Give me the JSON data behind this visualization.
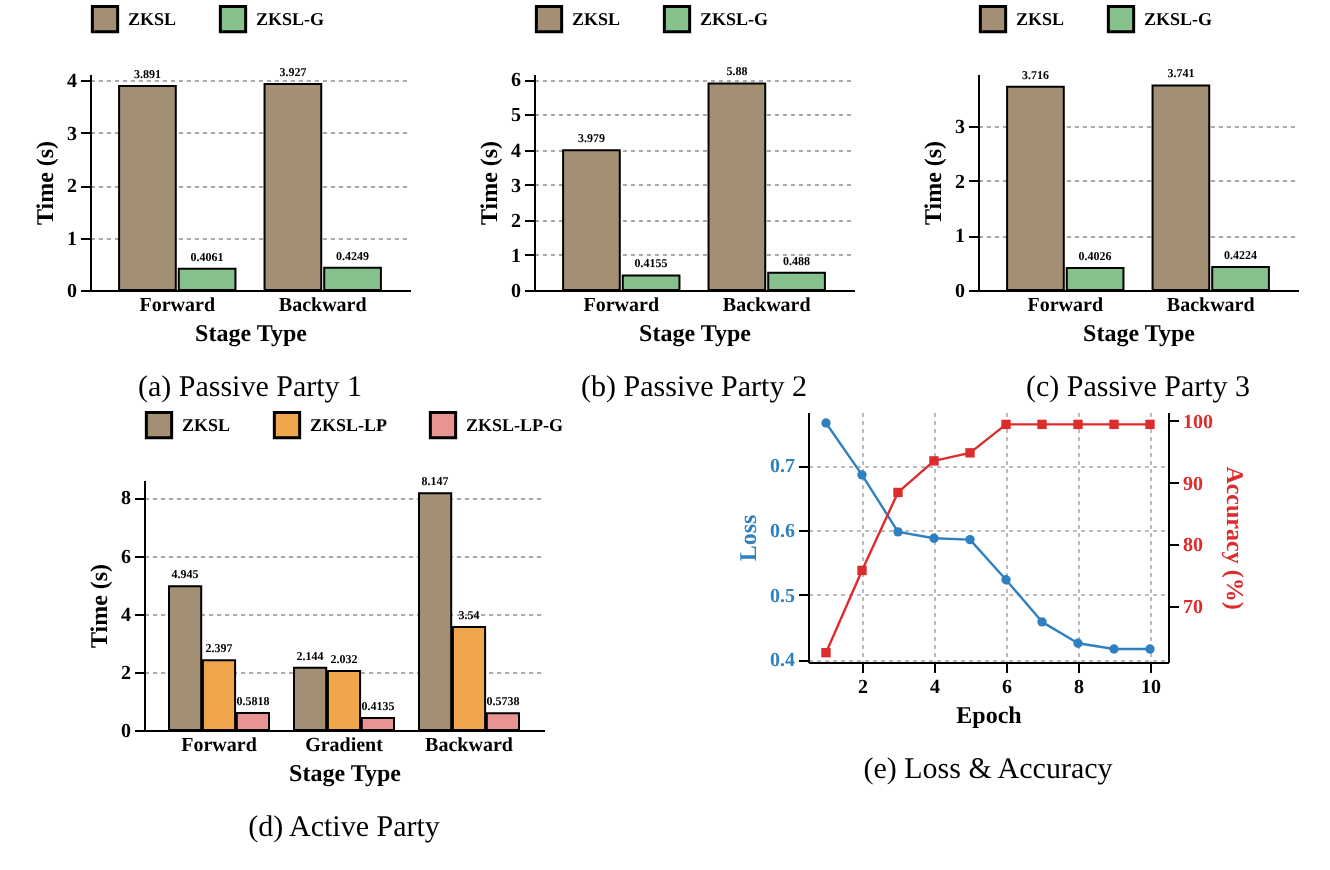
{
  "chart_data": [
    {
      "type": "bar",
      "title": "(a) Passive Party 1",
      "xlabel": "Stage Type",
      "ylabel": "Time (s)",
      "categories": [
        "Forward",
        "Backward"
      ],
      "ylim": [
        0,
        4.12
      ],
      "yticks": [
        0,
        1,
        2,
        3,
        4
      ],
      "grid": "y",
      "legend": "top",
      "data_labels": true,
      "series": [
        {
          "name": "ZKSL",
          "color": "#a38f73",
          "values": [
            3.891,
            3.927
          ]
        },
        {
          "name": "ZKSL-G",
          "color": "#86c08a",
          "values": [
            0.4061,
            0.4249
          ]
        }
      ]
    },
    {
      "type": "bar",
      "title": "(b) Passive Party 2",
      "xlabel": "Stage Type",
      "ylabel": "Time (s)",
      "categories": [
        "Forward",
        "Backward"
      ],
      "ylim": [
        0,
        6.15
      ],
      "yticks": [
        0,
        1,
        2,
        3,
        4,
        5,
        6
      ],
      "grid": "y",
      "legend": "top",
      "data_labels": true,
      "series": [
        {
          "name": "ZKSL",
          "color": "#a38f73",
          "values": [
            3.979,
            5.88
          ]
        },
        {
          "name": "ZKSL-G",
          "color": "#86c08a",
          "values": [
            0.4155,
            0.488
          ]
        }
      ]
    },
    {
      "type": "bar",
      "title": "(c) Passive Party 3",
      "xlabel": "Stage Type",
      "ylabel": "Time (s)",
      "categories": [
        "Forward",
        "Backward"
      ],
      "ylim": [
        0,
        3.95
      ],
      "yticks": [
        0,
        1,
        2,
        3
      ],
      "grid": "y",
      "legend": "top",
      "data_labels": true,
      "series": [
        {
          "name": "ZKSL",
          "color": "#a38f73",
          "values": [
            3.716,
            3.741
          ]
        },
        {
          "name": "ZKSL-G",
          "color": "#86c08a",
          "values": [
            0.4026,
            0.4224
          ]
        }
      ]
    },
    {
      "type": "bar",
      "title": "(d) Active Party",
      "xlabel": "Stage Type",
      "ylabel": "Time (s)",
      "categories": [
        "Forward",
        "Gradient",
        "Backward"
      ],
      "ylim": [
        0,
        8.6
      ],
      "yticks": [
        0,
        2,
        4,
        6,
        8
      ],
      "grid": "y",
      "legend": "top",
      "data_labels": true,
      "series": [
        {
          "name": "ZKSL",
          "color": "#a38f73",
          "values": [
            4.945,
            2.144,
            8.147
          ]
        },
        {
          "name": "ZKSL-LP",
          "color": "#f0a64a",
          "values": [
            2.397,
            2.032,
            3.54
          ]
        },
        {
          "name": "ZKSL-LP-G",
          "color": "#e89494",
          "values": [
            0.5818,
            0.4135,
            0.5738
          ]
        }
      ]
    },
    {
      "type": "line",
      "title": "(e) Loss & Accuracy",
      "xlabel": "Epoch",
      "ylabel": "Loss",
      "y2label": "Accuracy (%)",
      "x": [
        1,
        2,
        3,
        4,
        5,
        6,
        7,
        8,
        9,
        10
      ],
      "xlim": [
        0.5,
        10.5
      ],
      "xticks": [
        2,
        4,
        6,
        8,
        10
      ],
      "ylim": [
        0.396,
        0.782
      ],
      "yticks": [
        0.4,
        0.5,
        0.6,
        0.7
      ],
      "y2lim": [
        61,
        101.4
      ],
      "y2ticks": [
        70,
        80,
        90,
        100
      ],
      "grid": true,
      "series": [
        {
          "color": "#2f80c0",
          "marker": "circle",
          "values": [
            0.765,
            0.685,
            0.597,
            0.587,
            0.585,
            0.523,
            0.458,
            0.425,
            0.416,
            0.416
          ]
        },
        {
          "color": "#dc2c2c",
          "marker": "square",
          "axis": "y2",
          "values": [
            62.5,
            75.8,
            88.4,
            93.5,
            94.8,
            99.4,
            99.4,
            99.4,
            99.4,
            99.4
          ]
        }
      ]
    }
  ]
}
